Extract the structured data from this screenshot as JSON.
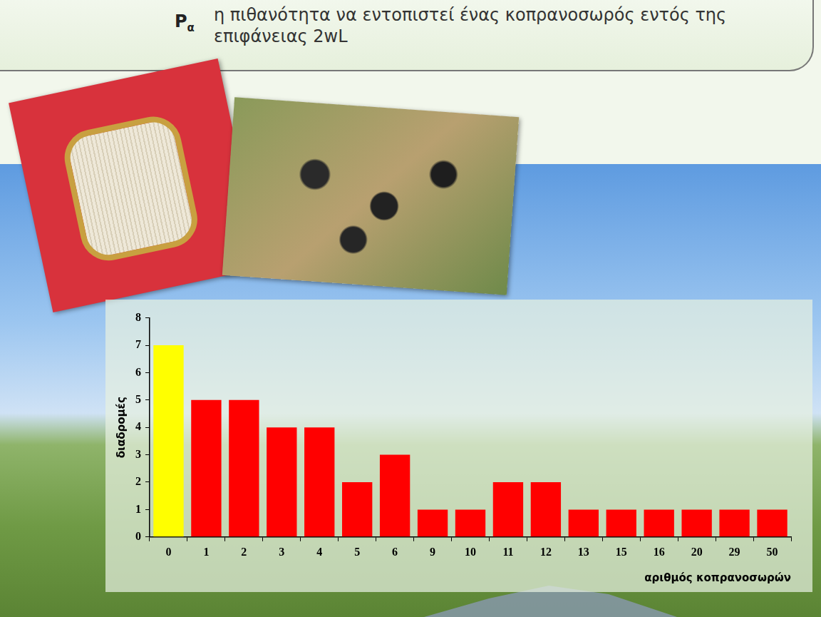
{
  "header": {
    "symbol": "P",
    "subscript": "α",
    "text": "η πιθανότητα να εντοπιστεί ένας κοπρανοσωρός εντός της επιφάνειας 2wL"
  },
  "chart_data": {
    "type": "bar",
    "categories": [
      "0",
      "1",
      "2",
      "3",
      "4",
      "5",
      "6",
      "9",
      "10",
      "11",
      "12",
      "13",
      "15",
      "16",
      "20",
      "29",
      "50"
    ],
    "values": [
      7,
      5,
      5,
      4,
      4,
      2,
      3,
      1,
      1,
      2,
      2,
      1,
      1,
      1,
      1,
      1,
      1
    ],
    "colors": [
      "#ffff00",
      "#ff0000",
      "#ff0000",
      "#ff0000",
      "#ff0000",
      "#ff0000",
      "#ff0000",
      "#ff0000",
      "#ff0000",
      "#ff0000",
      "#ff0000",
      "#ff0000",
      "#ff0000",
      "#ff0000",
      "#ff0000",
      "#ff0000",
      "#ff0000"
    ],
    "x_label": "αριθμός κοπρανοσωρών",
    "y_label": "διαδρομές",
    "ylim": [
      0,
      8
    ],
    "yticks": [
      0,
      1,
      2,
      3,
      4,
      5,
      6,
      7,
      8
    ],
    "grid": false
  }
}
